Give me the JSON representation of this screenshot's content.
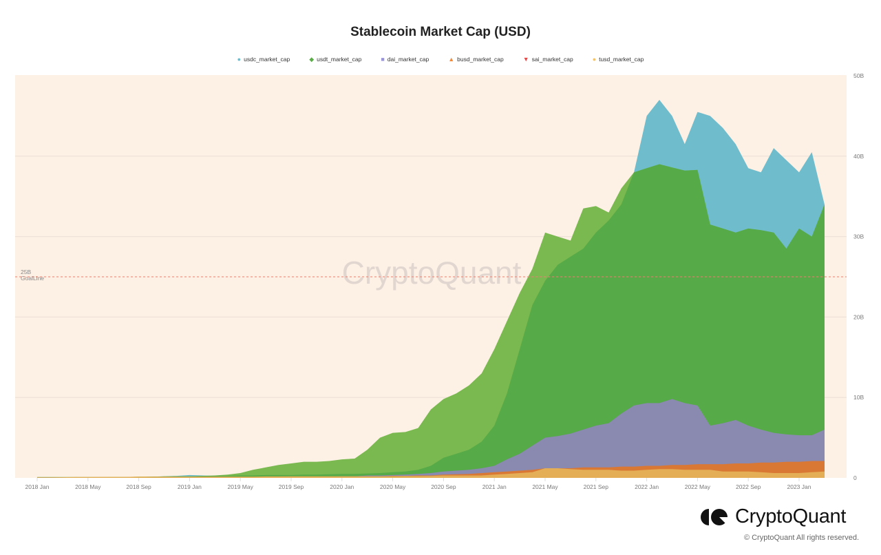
{
  "title": "Stablecoin Market Cap (USD)",
  "legend": [
    {
      "label": "usdc_market_cap",
      "marker": "●",
      "color": "#6fbccc"
    },
    {
      "label": "usdt_market_cap",
      "marker": "◆",
      "color": "#5aac48"
    },
    {
      "label": "dai_market_cap",
      "marker": "■",
      "color": "#9a95d6"
    },
    {
      "label": "busd_market_cap",
      "marker": "▲",
      "color": "#f08a3c"
    },
    {
      "label": "sai_market_cap",
      "marker": "▼",
      "color": "#e84848"
    },
    {
      "label": "tusd_market_cap",
      "marker": "●",
      "color": "#f2c36b"
    }
  ],
  "y_axis": {
    "ticks": [
      "0",
      "10B",
      "20B",
      "30B",
      "40B",
      "50B"
    ]
  },
  "x_axis": {
    "ticks": [
      "2018 Jan",
      "2018 May",
      "2018 Sep",
      "2019 Jan",
      "2019 May",
      "2019 Sep",
      "2020 Jan",
      "2020 May",
      "2020 Sep",
      "2021 Jan",
      "2021 May",
      "2021 Sep",
      "2022 Jan",
      "2022 May",
      "2022 Sep",
      "2023 Jan"
    ]
  },
  "goal_line": {
    "value_label": "25B",
    "name": "GoalLine",
    "value": 25
  },
  "watermark": "CryptoQuant",
  "footer": {
    "brand": "CryptoQuant",
    "copyright": "© CryptoQuant All rights reserved."
  },
  "colors": {
    "background": "#fdf0e5",
    "usdc": "#6fbccc",
    "usdt_only": "#7ab850",
    "overlap": "#56aa48",
    "dai": "#8a89b0",
    "busd": "#d97834",
    "tusd": "#e3ae55",
    "goal_line": "#e57f6f"
  },
  "chart_data": {
    "type": "area",
    "title": "Stablecoin Market Cap (USD)",
    "xlabel": "",
    "ylabel": "",
    "ylim": [
      0,
      50
    ],
    "y_unit": "B USD",
    "grid": true,
    "legend_position": "top",
    "annotations": [
      {
        "type": "hline",
        "y": 25,
        "label": "25B GoalLine"
      }
    ],
    "x": [
      "2018-01",
      "2018-02",
      "2018-03",
      "2018-04",
      "2018-05",
      "2018-06",
      "2018-07",
      "2018-08",
      "2018-09",
      "2018-10",
      "2018-11",
      "2018-12",
      "2019-01",
      "2019-02",
      "2019-03",
      "2019-04",
      "2019-05",
      "2019-06",
      "2019-07",
      "2019-08",
      "2019-09",
      "2019-10",
      "2019-11",
      "2019-12",
      "2020-01",
      "2020-02",
      "2020-03",
      "2020-04",
      "2020-05",
      "2020-06",
      "2020-07",
      "2020-08",
      "2020-09",
      "2020-10",
      "2020-11",
      "2020-12",
      "2021-01",
      "2021-02",
      "2021-03",
      "2021-04",
      "2021-05",
      "2021-06",
      "2021-07",
      "2021-08",
      "2021-09",
      "2021-10",
      "2021-11",
      "2021-12",
      "2022-01",
      "2022-02",
      "2022-03",
      "2022-04",
      "2022-05",
      "2022-06",
      "2022-07",
      "2022-08",
      "2022-09",
      "2022-10",
      "2022-11",
      "2022-12",
      "2023-01",
      "2023-02",
      "2023-03"
    ],
    "series": [
      {
        "name": "usdc_market_cap",
        "values": [
          0.05,
          0.05,
          0.05,
          0.05,
          0.05,
          0.05,
          0.05,
          0.05,
          0.1,
          0.15,
          0.2,
          0.25,
          0.35,
          0.3,
          0.25,
          0.25,
          0.3,
          0.3,
          0.35,
          0.35,
          0.35,
          0.4,
          0.4,
          0.45,
          0.5,
          0.5,
          0.55,
          0.6,
          0.7,
          0.8,
          1.0,
          1.5,
          2.5,
          3.0,
          3.5,
          4.5,
          6.5,
          10.5,
          16.0,
          21.5,
          24.5,
          26.5,
          27.5,
          28.5,
          30.5,
          32.0,
          34.0,
          38.0,
          45.0,
          47.0,
          45.0,
          41.5,
          45.5,
          45.0,
          43.5,
          41.5,
          38.5,
          38.0,
          41.0,
          39.5,
          38.0,
          40.5,
          34.0
        ]
      },
      {
        "name": "usdt_market_cap",
        "values": [
          0.1,
          0.1,
          0.1,
          0.1,
          0.1,
          0.1,
          0.12,
          0.12,
          0.15,
          0.15,
          0.18,
          0.2,
          0.2,
          0.25,
          0.3,
          0.4,
          0.6,
          1.0,
          1.3,
          1.6,
          1.8,
          2.0,
          2.0,
          2.1,
          2.3,
          2.4,
          3.5,
          5.0,
          5.6,
          5.7,
          6.2,
          8.5,
          9.8,
          10.5,
          11.5,
          13.0,
          16.0,
          19.5,
          23.0,
          26.0,
          30.5,
          30.0,
          29.5,
          33.5,
          33.8,
          33.0,
          36.0,
          38.0,
          38.5,
          39.0,
          38.6,
          38.2,
          38.3,
          31.5,
          31.0,
          30.5,
          31.0,
          30.8,
          30.5,
          28.5,
          31.0,
          30.0,
          34.0
        ]
      },
      {
        "name": "dai_market_cap",
        "values": [
          0.05,
          0.05,
          0.05,
          0.05,
          0.05,
          0.05,
          0.05,
          0.05,
          0.05,
          0.05,
          0.05,
          0.05,
          0.05,
          0.05,
          0.05,
          0.05,
          0.05,
          0.05,
          0.05,
          0.05,
          0.05,
          0.05,
          0.1,
          0.15,
          0.2,
          0.2,
          0.3,
          0.3,
          0.35,
          0.4,
          0.5,
          0.6,
          0.8,
          0.9,
          1.0,
          1.2,
          1.5,
          2.3,
          3.0,
          4.0,
          5.0,
          5.2,
          5.5,
          6.0,
          6.5,
          6.8,
          8.0,
          9.0,
          9.3,
          9.3,
          9.8,
          9.3,
          9.0,
          6.5,
          6.8,
          7.2,
          6.5,
          6.0,
          5.6,
          5.4,
          5.3,
          5.3,
          6.0
        ]
      },
      {
        "name": "busd_market_cap",
        "values": [
          0,
          0,
          0,
          0,
          0,
          0,
          0,
          0,
          0,
          0,
          0,
          0,
          0,
          0,
          0,
          0,
          0,
          0,
          0,
          0.05,
          0.05,
          0.1,
          0.1,
          0.1,
          0.15,
          0.15,
          0.2,
          0.2,
          0.25,
          0.25,
          0.3,
          0.3,
          0.4,
          0.45,
          0.5,
          0.6,
          0.7,
          0.8,
          0.9,
          1.0,
          1.2,
          1.2,
          1.2,
          1.3,
          1.3,
          1.3,
          1.4,
          1.4,
          1.5,
          1.5,
          1.6,
          1.6,
          1.7,
          1.7,
          1.7,
          1.8,
          1.8,
          1.9,
          1.9,
          2.0,
          2.0,
          2.1,
          2.1
        ]
      },
      {
        "name": "sai_market_cap",
        "values": [
          0.05,
          0.05,
          0.05,
          0.05,
          0.05,
          0.05,
          0.05,
          0.05,
          0.05,
          0.05,
          0.05,
          0.05,
          0.05,
          0.05,
          0.05,
          0.05,
          0.05,
          0.05,
          0.05,
          0.05,
          0.05,
          0.05,
          0.03,
          0.02,
          0.01,
          0,
          0,
          0,
          0,
          0,
          0,
          0,
          0,
          0,
          0,
          0,
          0,
          0,
          0,
          0,
          0,
          0,
          0,
          0,
          0,
          0,
          0,
          0,
          0,
          0,
          0,
          0,
          0,
          0,
          0,
          0,
          0,
          0,
          0,
          0,
          0,
          0,
          0
        ]
      },
      {
        "name": "tusd_market_cap",
        "values": [
          0.05,
          0.05,
          0.08,
          0.1,
          0.1,
          0.12,
          0.12,
          0.12,
          0.15,
          0.15,
          0.15,
          0.15,
          0.15,
          0.15,
          0.15,
          0.15,
          0.15,
          0.15,
          0.18,
          0.18,
          0.2,
          0.2,
          0.2,
          0.2,
          0.2,
          0.2,
          0.2,
          0.2,
          0.2,
          0.22,
          0.22,
          0.25,
          0.3,
          0.3,
          0.3,
          0.3,
          0.4,
          0.5,
          0.6,
          0.7,
          1.2,
          1.2,
          1.1,
          1.0,
          1.0,
          1.0,
          0.9,
          0.9,
          1.0,
          1.1,
          1.1,
          1.0,
          1.0,
          1.0,
          0.8,
          0.8,
          0.8,
          0.7,
          0.6,
          0.6,
          0.6,
          0.7,
          0.8
        ]
      }
    ]
  }
}
